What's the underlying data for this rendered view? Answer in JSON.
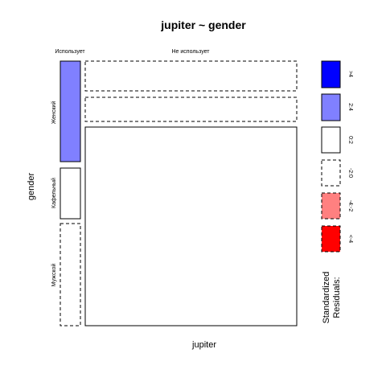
{
  "chart_data": {
    "type": "mosaic",
    "title": "jupiter ~ gender",
    "xlabel": "jupiter",
    "ylabel": "gender",
    "x_categories": [
      "Использует",
      "Не использует"
    ],
    "y_categories": [
      "Женский",
      "Кафельный",
      "Мужской"
    ],
    "cells": [
      {
        "x": "Использует",
        "y": "Женский",
        "residual_class": "2:4"
      },
      {
        "x": "Использует",
        "y": "Кафельный",
        "residual_class": "0:2"
      },
      {
        "x": "Использует",
        "y": "Мужской",
        "residual_class": "-2:0"
      },
      {
        "x": "Не использует",
        "y": "Женский",
        "residual_class": "-2:0"
      },
      {
        "x": "Не использует",
        "y": "Кафельный",
        "residual_class": "-2:0"
      },
      {
        "x": "Не использует",
        "y": "Мужской",
        "residual_class": "0:2"
      }
    ],
    "legend": {
      "title_lines": [
        "Standardized",
        "Residuals:"
      ],
      "placement": "right",
      "entries": [
        {
          "label": ">4",
          "fill": "#0000ff",
          "dashed": false
        },
        {
          "label": "2:4",
          "fill": "#8080ff",
          "dashed": false
        },
        {
          "label": "0:2",
          "fill": "#ffffff",
          "dashed": false
        },
        {
          "label": "-2:0",
          "fill": "#ffffff",
          "dashed": true
        },
        {
          "label": "-4:-2",
          "fill": "#ff8080",
          "dashed": true
        },
        {
          "label": "<-4",
          "fill": "#ff0000",
          "dashed": true
        }
      ]
    }
  }
}
